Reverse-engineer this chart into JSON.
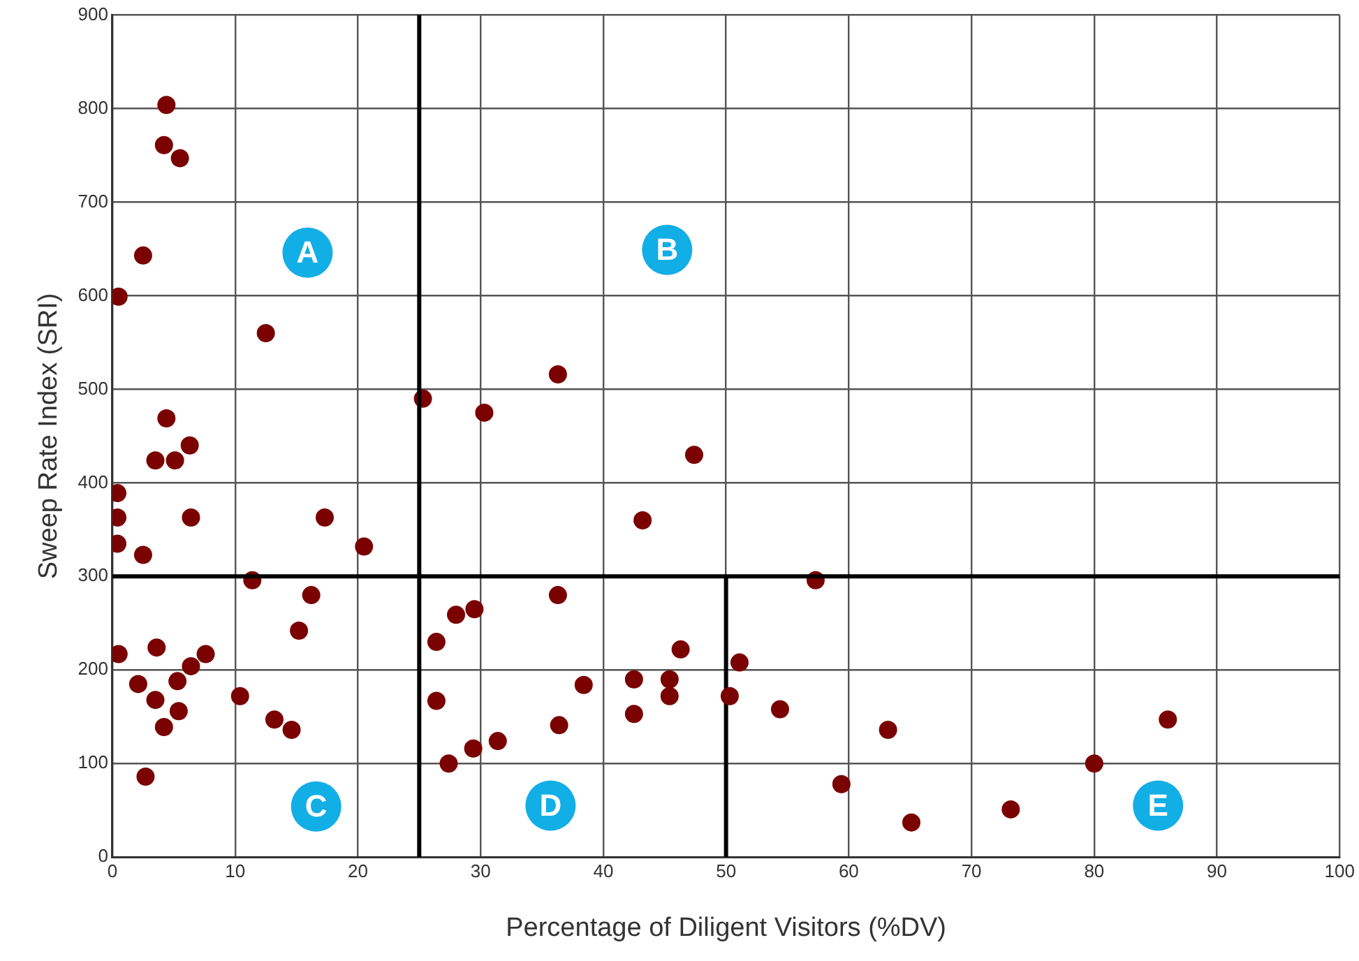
{
  "chart_data": {
    "type": "scatter",
    "xlabel": "Percentage of Diligent Visitors (%DV)",
    "ylabel": "Sweep Rate Index (SRI)",
    "xlim": [
      0,
      100
    ],
    "xticks": [
      0,
      10,
      20,
      30,
      40,
      50,
      60,
      70,
      80,
      90,
      100
    ],
    "ylim": [
      0,
      900
    ],
    "yticks": [
      0,
      100,
      200,
      300,
      400,
      500,
      600,
      700,
      800,
      900
    ],
    "grid": true,
    "legend": false,
    "marker": "circle",
    "series": [
      {
        "color": "#7b0000",
        "x": [
          4.4,
          4.2,
          5.5,
          2.5,
          0.5,
          12.5,
          4.4,
          3.5,
          5.1,
          6.3,
          0.4,
          0.4,
          6.4,
          0.4,
          2.5,
          17.3,
          20.5,
          11.4,
          16.2,
          15.2,
          0.5,
          3.6,
          7.6,
          6.4,
          2.1,
          5.3,
          3.5,
          10.4,
          4.2,
          5.4,
          13.2,
          14.6,
          2.7,
          25.3,
          30.3,
          36.3,
          47.4,
          43.2,
          36.3,
          26.4,
          28.0,
          29.5,
          26.4,
          27.4,
          29.4,
          31.4,
          36.4,
          38.4,
          42.5,
          42.5,
          45.4,
          45.4,
          46.3,
          50.3,
          51.1,
          54.4,
          57.3,
          59.4,
          63.2,
          65.1,
          73.2,
          80.0,
          86.0
        ],
        "values": [
          804,
          761,
          747,
          643,
          599,
          560,
          469,
          424,
          424,
          440,
          389,
          363,
          363,
          335,
          323,
          363,
          332,
          296,
          280,
          242,
          217,
          224,
          217,
          204,
          185,
          188,
          168,
          172,
          139,
          156,
          147,
          136,
          86,
          490,
          475,
          516,
          430,
          360,
          280,
          230,
          259,
          265,
          167,
          100,
          116,
          124,
          141,
          184,
          190,
          153,
          190,
          172,
          222,
          172,
          208,
          158,
          296,
          78,
          136,
          37,
          51,
          100,
          147
        ]
      },
      {
        "type": "line",
        "color": "#000000",
        "marker": "none",
        "x": [
          50,
          50
        ],
        "values": [
          0,
          300
        ]
      }
    ],
    "ref_lines": [
      {
        "axis": "x",
        "value": 25,
        "color": "#000000"
      },
      {
        "axis": "y",
        "value": 300,
        "color": "#000000"
      }
    ],
    "annotations": [
      {
        "text": "A",
        "x": 15.9,
        "y": 646
      },
      {
        "text": "B",
        "x": 45.2,
        "y": 649
      },
      {
        "text": "C",
        "x": 16.6,
        "y": 54
      },
      {
        "text": "D",
        "x": 35.7,
        "y": 55
      },
      {
        "text": "E",
        "x": 85.2,
        "y": 55
      }
    ]
  }
}
